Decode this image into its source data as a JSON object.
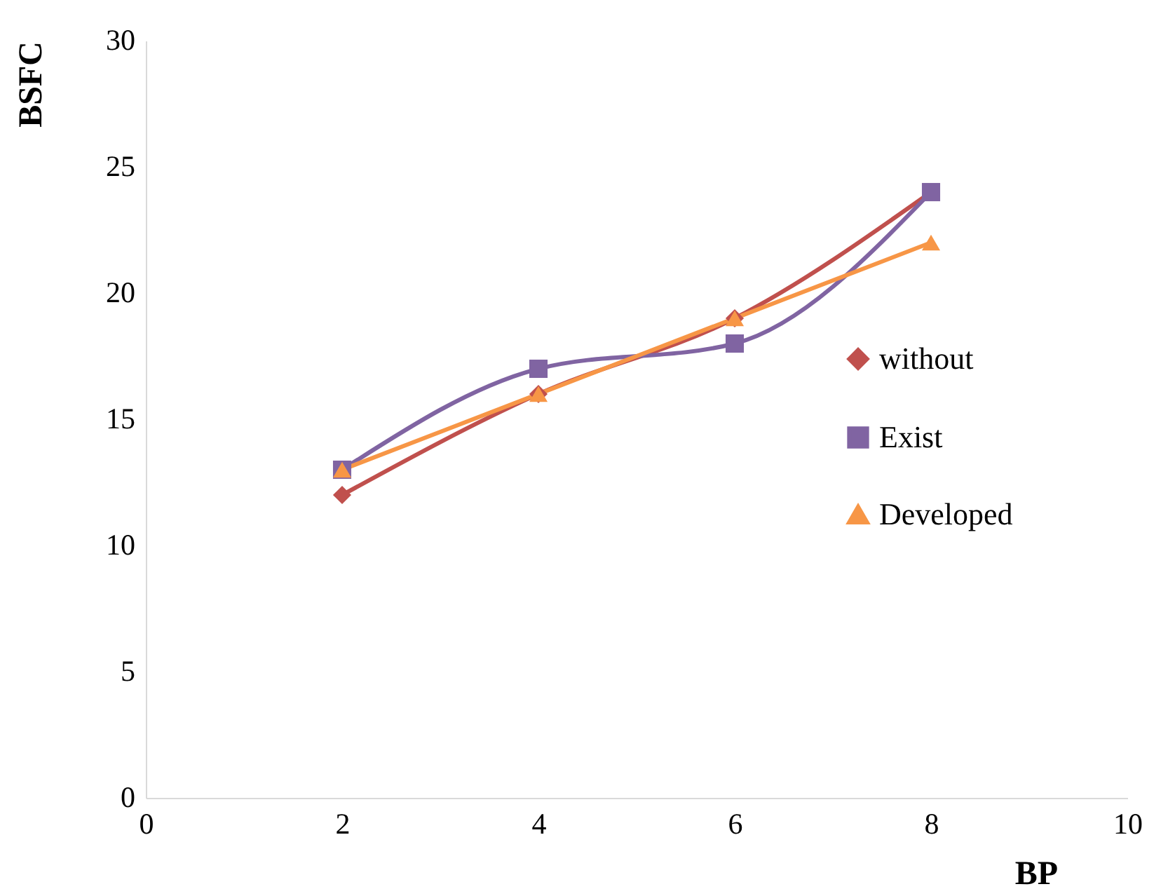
{
  "chart_data": {
    "type": "line",
    "xlabel": "BP",
    "ylabel": "BSFC",
    "x": [
      2,
      4,
      6,
      8
    ],
    "series": [
      {
        "name": "without",
        "color": "#c0504d",
        "marker": "diamond",
        "values": [
          12,
          16,
          19,
          24
        ]
      },
      {
        "name": "Exist",
        "color": "#8064a2",
        "marker": "square",
        "values": [
          13,
          17,
          18,
          24
        ]
      },
      {
        "name": "Developed",
        "color": "#f79646",
        "marker": "triangle",
        "values": [
          13,
          16,
          19,
          22
        ]
      }
    ],
    "xlim": [
      0,
      10
    ],
    "xticks": [
      0,
      2,
      4,
      6,
      8,
      10
    ],
    "ylim": [
      0,
      30
    ],
    "yticks": [
      0,
      5,
      10,
      15,
      20,
      25,
      30
    ],
    "grid": false,
    "legend": "right",
    "line_style": "solid"
  }
}
